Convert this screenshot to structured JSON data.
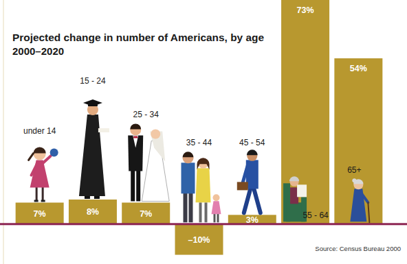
{
  "chart_data": {
    "type": "bar",
    "title": "Projected change in number of Americans, by age",
    "subtitle": "2000–2020",
    "categories": [
      "under 14",
      "15 - 24",
      "25 - 34",
      "35 - 44",
      "45 - 54",
      "55 - 64",
      "65+"
    ],
    "values": [
      7,
      8,
      7,
      -10,
      3,
      73,
      54
    ],
    "value_labels": [
      "7%",
      "8%",
      "7%",
      "–10%",
      "3%",
      "73%",
      "54%"
    ],
    "color": "#b8982f",
    "ylim": [
      -13,
      73
    ],
    "data_labels": true,
    "tick_labels": false,
    "grid": false,
    "source": "Source: Census Bureau 2000"
  }
}
